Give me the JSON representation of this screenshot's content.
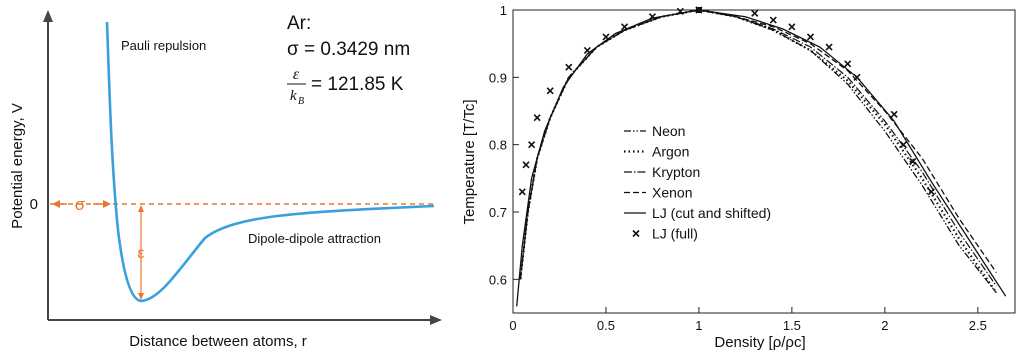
{
  "left_panel": {
    "ylabel": "Potential energy, V",
    "xlabel": "Distance between atoms, r",
    "zero_label": "0",
    "sigma_label": "σ",
    "epsilon_label": "ε",
    "repulsion_label": "Pauli repulsion",
    "attraction_label": "Dipole-dipole attraction",
    "params_title": "Ar:",
    "sigma_eq": "σ = 0.3429 nm",
    "eps_num": "ε",
    "eps_den": "k",
    "eps_den_sub": "B",
    "eps_value": "= 121.85 K",
    "colors": {
      "curve": "#3aa0dc",
      "annotation": "#e8782d"
    }
  },
  "chart_data": [
    {
      "type": "line",
      "title": "",
      "xlabel": "Distance between atoms, r",
      "ylabel": "Potential energy, V",
      "series": [
        {
          "name": "",
          "x": [
            0.9,
            0.95,
            1.0,
            1.05,
            1.12,
            1.2,
            1.3,
            1.45,
            1.6,
            1.8,
            2.0,
            2.3,
            2.6,
            3.0
          ],
          "y": [
            4.5,
            1.8,
            0.0,
            -0.6,
            -1.0,
            -0.92,
            -0.72,
            -0.45,
            -0.3,
            -0.17,
            -0.11,
            -0.07,
            -0.05,
            -0.03
          ]
        }
      ]
    },
    {
      "type": "line",
      "title": "",
      "xlabel": "Density [ρ/ρc]",
      "ylabel": "Temperature [T/Tc]",
      "xlim": [
        0,
        2.7
      ],
      "ylim": [
        0.55,
        1.0
      ],
      "xticks": [
        "0",
        "0.5",
        "1",
        "1.5",
        "2",
        "2.5"
      ],
      "yticks": [
        "0.6",
        "0.7",
        "0.8",
        "0.9",
        "1"
      ],
      "legend": "center-left",
      "series": [
        {
          "name": "Neon",
          "x": [
            0.04,
            0.08,
            0.13,
            0.2,
            0.3,
            0.45,
            0.6,
            0.8,
            1.0,
            1.2,
            1.4,
            1.6,
            1.8,
            2.0,
            2.2,
            2.4,
            2.6
          ],
          "y": [
            0.6,
            0.7,
            0.78,
            0.84,
            0.9,
            0.945,
            0.97,
            0.99,
            1.0,
            0.99,
            0.97,
            0.94,
            0.89,
            0.82,
            0.74,
            0.65,
            0.58
          ]
        },
        {
          "name": "Argon",
          "x": [
            0.04,
            0.08,
            0.13,
            0.2,
            0.3,
            0.45,
            0.6,
            0.8,
            1.0,
            1.2,
            1.4,
            1.6,
            1.8,
            2.0,
            2.2,
            2.4,
            2.6
          ],
          "y": [
            0.6,
            0.7,
            0.78,
            0.84,
            0.9,
            0.945,
            0.97,
            0.99,
            1.0,
            0.99,
            0.97,
            0.94,
            0.895,
            0.83,
            0.75,
            0.66,
            0.58
          ]
        },
        {
          "name": "Krypton",
          "x": [
            0.04,
            0.08,
            0.13,
            0.2,
            0.3,
            0.45,
            0.6,
            0.8,
            1.0,
            1.2,
            1.4,
            1.6,
            1.8,
            2.0,
            2.2,
            2.4,
            2.6
          ],
          "y": [
            0.6,
            0.7,
            0.78,
            0.84,
            0.9,
            0.945,
            0.97,
            0.99,
            1.0,
            0.99,
            0.972,
            0.945,
            0.9,
            0.835,
            0.76,
            0.67,
            0.59
          ]
        },
        {
          "name": "Xenon",
          "x": [
            0.04,
            0.08,
            0.13,
            0.2,
            0.3,
            0.45,
            0.6,
            0.8,
            1.0,
            1.2,
            1.4,
            1.6,
            1.8,
            2.0,
            2.2,
            2.4,
            2.6
          ],
          "y": [
            0.6,
            0.7,
            0.78,
            0.84,
            0.9,
            0.945,
            0.97,
            0.99,
            1.0,
            0.99,
            0.975,
            0.95,
            0.91,
            0.85,
            0.78,
            0.69,
            0.61
          ]
        },
        {
          "name": "LJ (cut and shifted)",
          "x": [
            0.02,
            0.05,
            0.1,
            0.17,
            0.27,
            0.4,
            0.55,
            0.75,
            1.0,
            1.25,
            1.45,
            1.65,
            1.85,
            2.05,
            2.25,
            2.45,
            2.65
          ],
          "y": [
            0.56,
            0.65,
            0.75,
            0.82,
            0.885,
            0.935,
            0.965,
            0.988,
            1.0,
            0.99,
            0.972,
            0.945,
            0.9,
            0.835,
            0.745,
            0.66,
            0.575
          ]
        },
        {
          "name": "LJ (full)",
          "x": [
            0.05,
            0.07,
            0.1,
            0.13,
            0.2,
            0.3,
            0.4,
            0.5,
            0.6,
            0.75,
            0.9,
            1.0,
            1.3,
            1.4,
            1.5,
            1.6,
            1.7,
            1.8,
            1.85,
            2.05,
            2.1,
            2.15,
            2.25
          ],
          "y": [
            0.73,
            0.77,
            0.8,
            0.84,
            0.88,
            0.915,
            0.94,
            0.96,
            0.975,
            0.99,
            0.998,
            1.0,
            0.995,
            0.985,
            0.975,
            0.96,
            0.945,
            0.92,
            0.9,
            0.845,
            0.8,
            0.775,
            0.73
          ]
        }
      ]
    }
  ]
}
